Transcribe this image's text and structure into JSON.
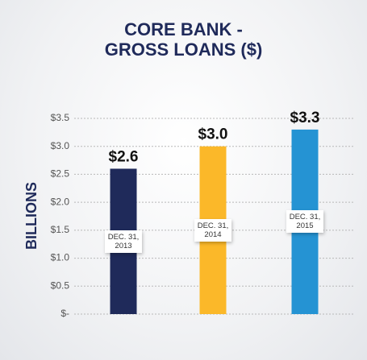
{
  "chart_data": {
    "type": "bar",
    "title": "CORE BANK - GROSS LOANS ($)",
    "y_label": "BILLIONS",
    "categories": [
      "DEC. 31, 2013",
      "DEC. 31, 2014",
      "DEC. 31, 2015"
    ],
    "values": [
      2.6,
      3.0,
      3.3
    ],
    "value_labels": [
      "$2.6",
      "$3.0",
      "$3.3"
    ],
    "colors": [
      "#1f2a5a",
      "#fbb829",
      "#2593d3"
    ],
    "ylim": [
      0,
      3.5
    ],
    "yticks": [
      {
        "value": 0,
        "label": "$-"
      },
      {
        "value": 0.5,
        "label": "$0.5"
      },
      {
        "value": 1,
        "label": "$1.0"
      },
      {
        "value": 1.5,
        "label": "$1.5"
      },
      {
        "value": 2,
        "label": "$2.0"
      },
      {
        "value": 2.5,
        "label": "$2.5"
      },
      {
        "value": 3,
        "label": "$3.0"
      },
      {
        "value": 3.5,
        "label": "$3.5"
      }
    ],
    "grid": true
  }
}
